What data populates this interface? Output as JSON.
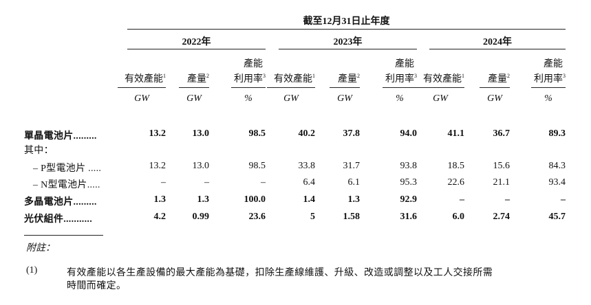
{
  "header": {
    "period": "截至12月31日止年度",
    "years": [
      "2022年",
      "2023年",
      "2024年"
    ],
    "columns": [
      {
        "label": "有效產能",
        "sup": "1",
        "unit": "GW"
      },
      {
        "label": "產量",
        "sup": "2",
        "unit": "GW"
      },
      {
        "label_line1": "產能",
        "label_line2": "利用率",
        "sup": "3",
        "unit": "%"
      }
    ]
  },
  "rows": [
    {
      "label": "單晶電池片.........",
      "bold": true,
      "values": [
        "13.2",
        "13.0",
        "98.5",
        "40.2",
        "37.8",
        "94.0",
        "41.1",
        "36.7",
        "89.3"
      ]
    },
    {
      "label": "其中：",
      "bold": false,
      "values": []
    },
    {
      "label": "– P型電池片 .....",
      "bold": false,
      "indent": true,
      "values": [
        "13.2",
        "13.0",
        "98.5",
        "33.8",
        "31.7",
        "93.8",
        "18.5",
        "15.6",
        "84.3"
      ]
    },
    {
      "label": "– N型電池片.....",
      "bold": false,
      "indent": true,
      "values": [
        "–",
        "–",
        "–",
        "6.4",
        "6.1",
        "95.3",
        "22.6",
        "21.1",
        "93.4"
      ]
    },
    {
      "label": "多晶電池片.........",
      "bold": true,
      "values": [
        "1.3",
        "1.3",
        "100.0",
        "1.4",
        "1.3",
        "92.9",
        "–",
        "–",
        "–"
      ]
    },
    {
      "label": "光伏組件...........",
      "bold": true,
      "values": [
        "4.2",
        "0.99",
        "23.6",
        "5",
        "1.58",
        "31.6",
        "6.0",
        "2.74",
        "45.7"
      ]
    }
  ],
  "notes": {
    "title": "附註：",
    "items": [
      {
        "num": "(1)",
        "line1": "有效產能以各生產設備的最大產能為基礎，扣除生產線維護、升級、改造或調整以及工人交接所需",
        "line2": "時間而確定。"
      }
    ]
  }
}
